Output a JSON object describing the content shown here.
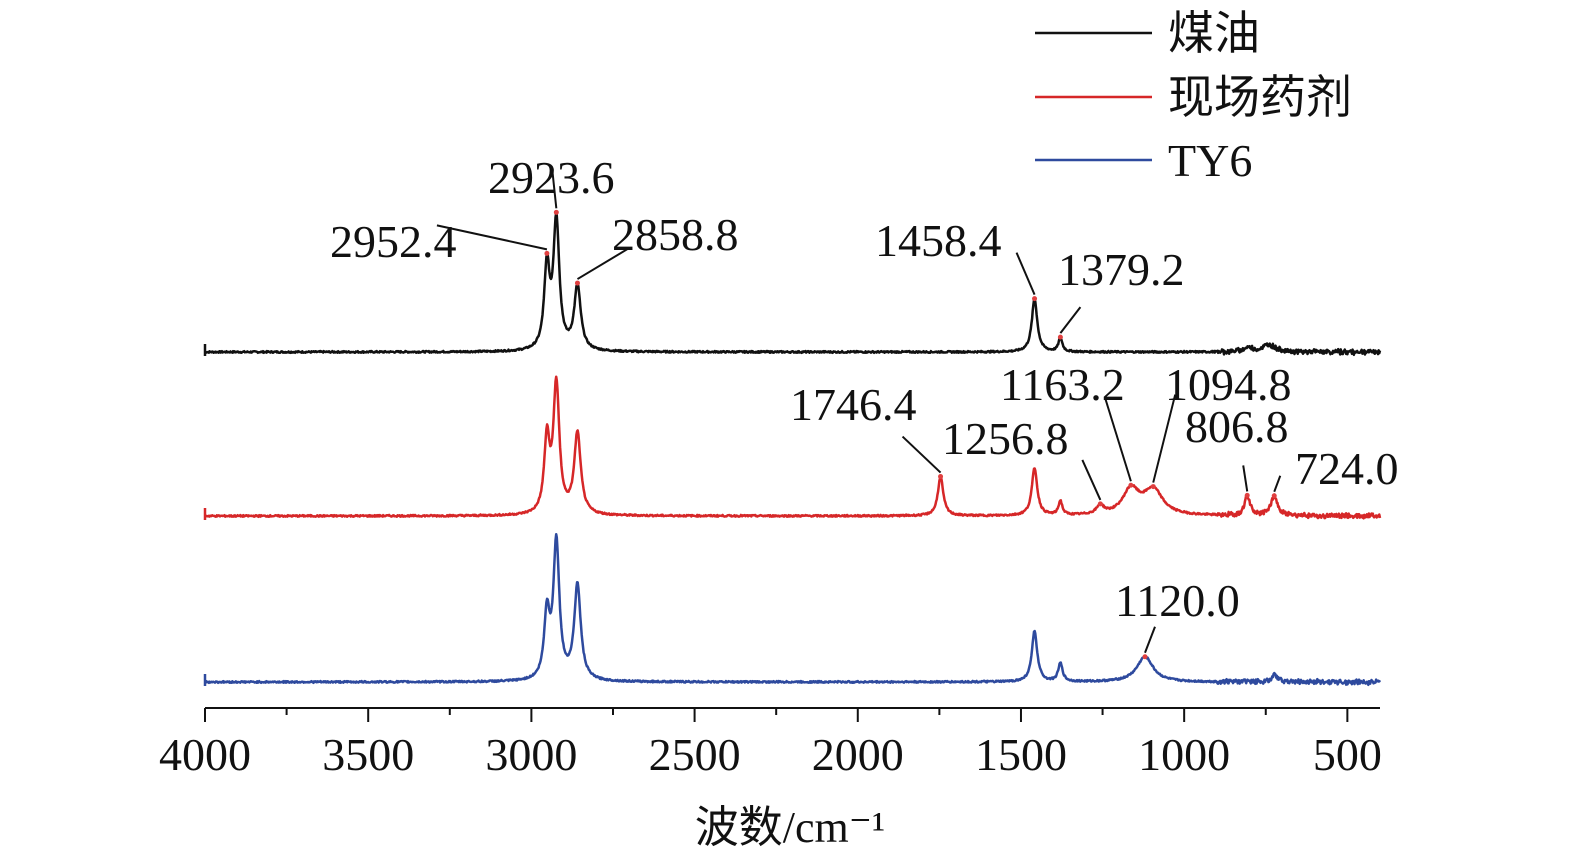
{
  "chart_data": {
    "type": "line",
    "title": "",
    "xlabel": "波数/cm⁻¹",
    "ylabel": "",
    "xlim": [
      4000,
      400
    ],
    "x_reversed": true,
    "x_ticks": [
      "4000",
      "3500",
      "3000",
      "2500",
      "2000",
      "1500",
      "1000",
      "500"
    ],
    "y_axis_shown": false,
    "grid": false,
    "legend_position": "top-right",
    "series": [
      {
        "name": "煤油",
        "color": "#111111",
        "baseline": 0.0,
        "peaks": [
          {
            "x": 2952.4,
            "h": 0.58,
            "w": 10
          },
          {
            "x": 2923.6,
            "h": 0.92,
            "w": 11
          },
          {
            "x": 2858.8,
            "h": 0.46,
            "w": 12
          },
          {
            "x": 1458.4,
            "h": 0.38,
            "w": 10
          },
          {
            "x": 1379.2,
            "h": 0.1,
            "w": 7
          },
          {
            "x": 740,
            "h": 0.05,
            "w": 25
          },
          {
            "x": 805,
            "h": 0.03,
            "w": 15
          }
        ],
        "annotations": [
          "2952.4",
          "2923.6",
          "2858.8",
          "1458.4",
          "1379.2"
        ]
      },
      {
        "name": "现场药剂",
        "color": "#d62728",
        "baseline": 0.0,
        "peaks": [
          {
            "x": 2952.4,
            "h": 0.52,
            "w": 10
          },
          {
            "x": 2923.6,
            "h": 0.92,
            "w": 11
          },
          {
            "x": 2858.8,
            "h": 0.58,
            "w": 12
          },
          {
            "x": 1746.4,
            "h": 0.28,
            "w": 10
          },
          {
            "x": 1458.4,
            "h": 0.34,
            "w": 10
          },
          {
            "x": 1379.2,
            "h": 0.1,
            "w": 7
          },
          {
            "x": 1256.8,
            "h": 0.06,
            "w": 14
          },
          {
            "x": 1163.2,
            "h": 0.18,
            "w": 30
          },
          {
            "x": 1094.8,
            "h": 0.18,
            "w": 35
          },
          {
            "x": 806.8,
            "h": 0.14,
            "w": 10
          },
          {
            "x": 724.0,
            "h": 0.14,
            "w": 12
          }
        ],
        "annotations": [
          "1746.4",
          "1256.8",
          "1163.2",
          "1094.8",
          "806.8",
          "724.0"
        ]
      },
      {
        "name": "TY6",
        "color": "#2e4a9e",
        "baseline": 0.0,
        "peaks": [
          {
            "x": 2952.4,
            "h": 0.46,
            "w": 10
          },
          {
            "x": 2923.6,
            "h": 0.98,
            "w": 11
          },
          {
            "x": 2858.8,
            "h": 0.68,
            "w": 12
          },
          {
            "x": 1458.4,
            "h": 0.36,
            "w": 10
          },
          {
            "x": 1379.2,
            "h": 0.13,
            "w": 8
          },
          {
            "x": 1120.0,
            "h": 0.18,
            "w": 30
          },
          {
            "x": 724.0,
            "h": 0.05,
            "w": 12
          }
        ],
        "annotations": [
          "1120.0"
        ]
      }
    ],
    "peak_labels": [
      {
        "text": "2952.4",
        "x": 2952.4,
        "series": 0
      },
      {
        "text": "2923.6",
        "x": 2923.6,
        "series": 0
      },
      {
        "text": "2858.8",
        "x": 2858.8,
        "series": 0
      },
      {
        "text": "1458.4",
        "x": 1458.4,
        "series": 0
      },
      {
        "text": "1379.2",
        "x": 1379.2,
        "series": 0
      },
      {
        "text": "1746.4",
        "x": 1746.4,
        "series": 1
      },
      {
        "text": "1256.8",
        "x": 1256.8,
        "series": 1
      },
      {
        "text": "1163.2",
        "x": 1163.2,
        "series": 1
      },
      {
        "text": "1094.8",
        "x": 1094.8,
        "series": 1
      },
      {
        "text": "806.8",
        "x": 806.8,
        "series": 1
      },
      {
        "text": "724.0",
        "x": 724.0,
        "series": 1
      },
      {
        "text": "1120.0",
        "x": 1120.0,
        "series": 2
      }
    ]
  }
}
